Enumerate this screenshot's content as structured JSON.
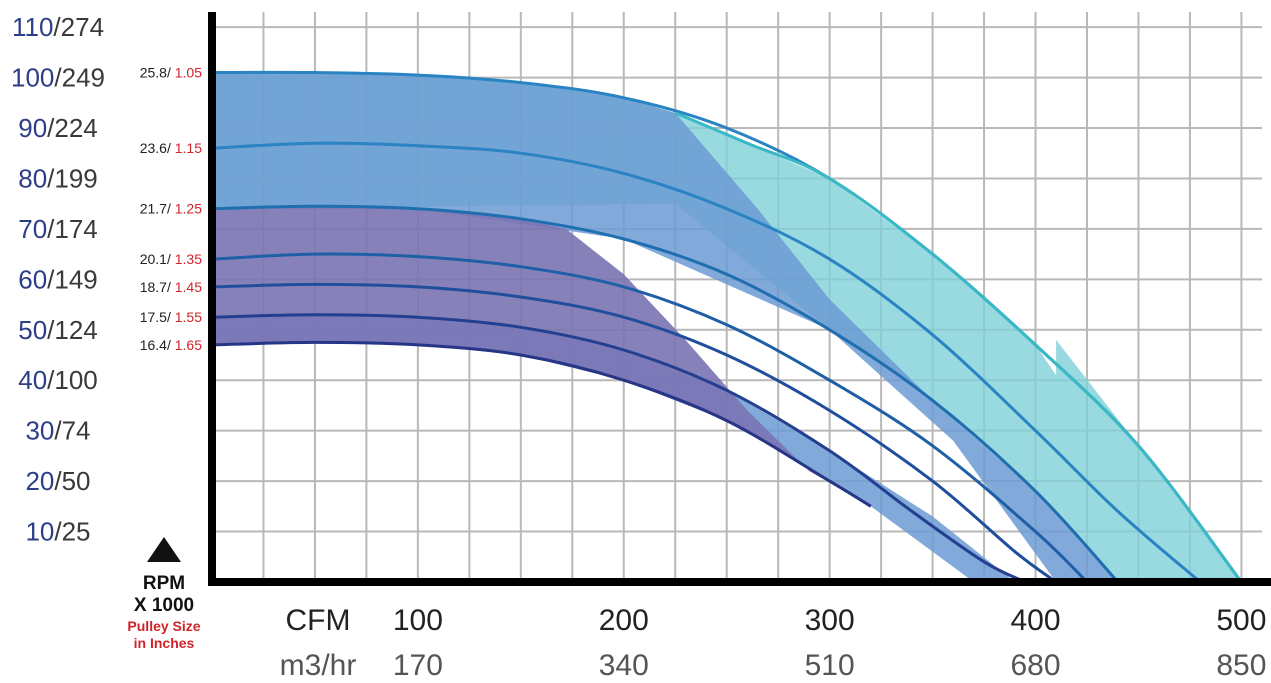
{
  "chart_data": {
    "type": "line",
    "y_tick_labels": [
      {
        "value": 10,
        "primary": "10",
        "secondary": "/25"
      },
      {
        "value": 20,
        "primary": "20",
        "secondary": "/50"
      },
      {
        "value": 30,
        "primary": "30",
        "secondary": "/74"
      },
      {
        "value": 40,
        "primary": "40",
        "secondary": "/100"
      },
      {
        "value": 50,
        "primary": "50",
        "secondary": "/124"
      },
      {
        "value": 60,
        "primary": "60",
        "secondary": "/149"
      },
      {
        "value": 70,
        "primary": "70",
        "secondary": "/174"
      },
      {
        "value": 80,
        "primary": "80",
        "secondary": "/199"
      },
      {
        "value": 90,
        "primary": "90",
        "secondary": "/224"
      },
      {
        "value": 100,
        "primary": "100",
        "secondary": "/249"
      },
      {
        "value": 110,
        "primary": "110",
        "secondary": "/274"
      }
    ],
    "x_prefix_cfm": "CFM",
    "x_prefix_m3": "m3/hr",
    "x_tick_labels": [
      {
        "value": 100,
        "cfm": "100",
        "m3": "170"
      },
      {
        "value": 200,
        "cfm": "200",
        "m3": "340"
      },
      {
        "value": 300,
        "cfm": "300",
        "m3": "510"
      },
      {
        "value": 400,
        "cfm": "400",
        "m3": "680"
      },
      {
        "value": 500,
        "cfm": "500",
        "m3": "850"
      }
    ],
    "xlim": [
      0,
      510
    ],
    "ylim": [
      0,
      113
    ],
    "grid": true,
    "y_axis_caption": {
      "line1": "RPM",
      "line2": "X 1000",
      "line3": "Pulley Size",
      "line4": "in Inches"
    },
    "series": [
      {
        "rpm": "25.8/ ",
        "pulley": "1.05",
        "color": "#2a83c2",
        "points": [
          [
            0,
            101
          ],
          [
            50,
            101
          ],
          [
            100,
            100.5
          ],
          [
            150,
            99
          ],
          [
            200,
            96
          ],
          [
            250,
            90
          ],
          [
            300,
            80
          ],
          [
            350,
            65
          ],
          [
            400,
            47
          ],
          [
            450,
            27
          ],
          [
            500,
            0
          ]
        ]
      },
      {
        "rpm": "23.6/ ",
        "pulley": "1.15",
        "color": "#2a83c2",
        "points": [
          [
            0,
            86
          ],
          [
            50,
            87
          ],
          [
            100,
            86.5
          ],
          [
            150,
            85
          ],
          [
            200,
            81
          ],
          [
            250,
            74
          ],
          [
            300,
            64
          ],
          [
            350,
            49
          ],
          [
            400,
            30
          ],
          [
            440,
            14
          ],
          [
            480,
            0
          ]
        ]
      },
      {
        "rpm": "21.7/ ",
        "pulley": "1.25",
        "color": "#1f6fb0",
        "points": [
          [
            0,
            74
          ],
          [
            50,
            74.5
          ],
          [
            100,
            74
          ],
          [
            150,
            72
          ],
          [
            200,
            68
          ],
          [
            250,
            61
          ],
          [
            300,
            50
          ],
          [
            350,
            36
          ],
          [
            400,
            18
          ],
          [
            440,
            0
          ]
        ]
      },
      {
        "rpm": "20.1/ ",
        "pulley": "1.35",
        "color": "#1f5fa8",
        "points": [
          [
            0,
            64
          ],
          [
            50,
            65
          ],
          [
            100,
            64.5
          ],
          [
            150,
            62.5
          ],
          [
            200,
            58.5
          ],
          [
            250,
            51
          ],
          [
            300,
            40
          ],
          [
            350,
            27
          ],
          [
            400,
            10
          ],
          [
            425,
            0
          ]
        ]
      },
      {
        "rpm": "18.7/ ",
        "pulley": "1.45",
        "color": "#214e9c",
        "points": [
          [
            0,
            58.5
          ],
          [
            50,
            59
          ],
          [
            100,
            58.5
          ],
          [
            150,
            56.5
          ],
          [
            200,
            52.5
          ],
          [
            250,
            45
          ],
          [
            300,
            34
          ],
          [
            350,
            20
          ],
          [
            390,
            6
          ],
          [
            410,
            0
          ]
        ]
      },
      {
        "rpm": "17.5/ ",
        "pulley": "1.55",
        "color": "#233f90",
        "points": [
          [
            0,
            52.5
          ],
          [
            50,
            53
          ],
          [
            100,
            52.5
          ],
          [
            150,
            50.5
          ],
          [
            200,
            46
          ],
          [
            250,
            38
          ],
          [
            300,
            26
          ],
          [
            340,
            14
          ],
          [
            375,
            4
          ],
          [
            395,
            0
          ]
        ]
      },
      {
        "rpm": "16.4/ ",
        "pulley": "1.65",
        "color": "#263586",
        "points": [
          [
            0,
            47
          ],
          [
            50,
            47.5
          ],
          [
            100,
            47
          ],
          [
            150,
            45
          ],
          [
            200,
            40
          ],
          [
            250,
            32
          ],
          [
            300,
            20
          ],
          [
            320,
            15
          ]
        ]
      }
    ]
  }
}
